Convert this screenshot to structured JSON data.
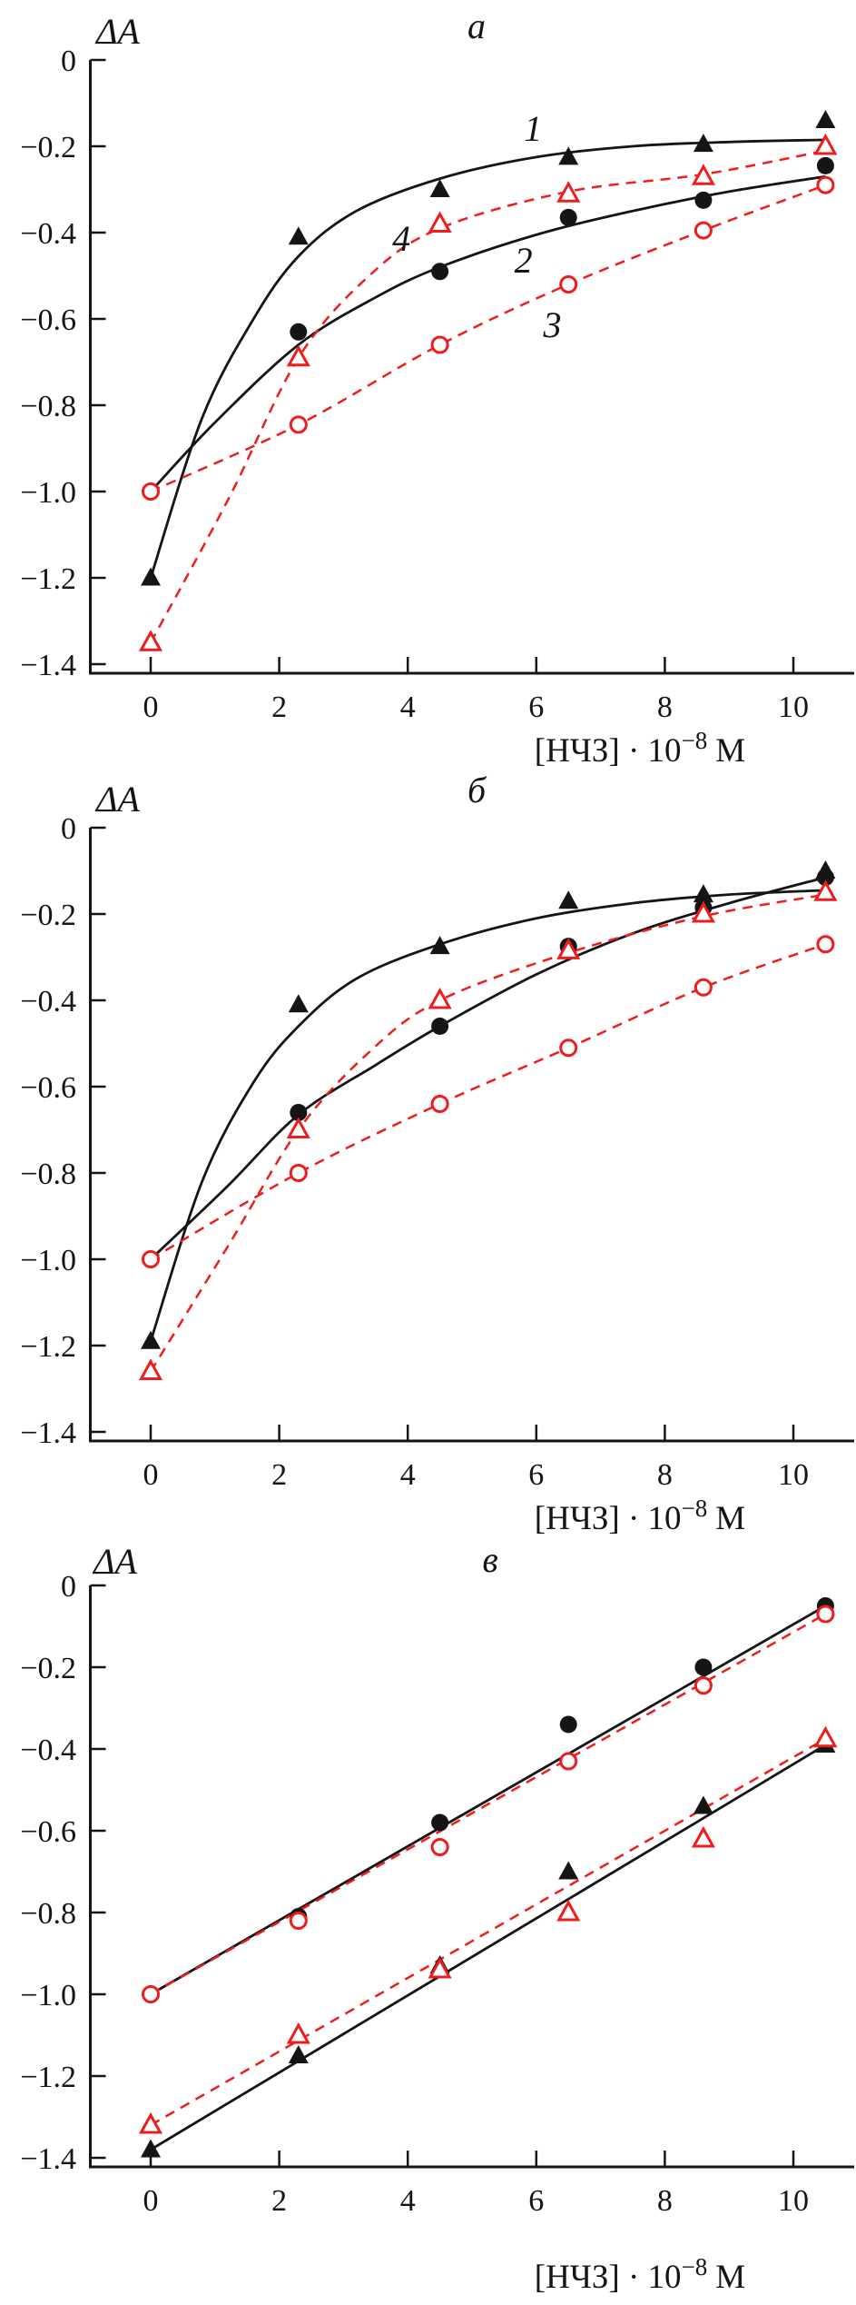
{
  "figure": {
    "palette": {
      "black": "#151515",
      "red": "#ee1c1c",
      "background": "#ffffff"
    }
  },
  "chart_data": [
    {
      "type": "line",
      "title": "a",
      "ylabel": "ΔA",
      "xlabel": "[НЧЗ] · 10⁻⁸ М",
      "xlabel_prefix": "[НЧЗ] · 10",
      "xlabel_sup": "−8",
      "xlabel_unit": "М",
      "x_ticks": [
        "0",
        "2",
        "4",
        "6",
        "8",
        "10"
      ],
      "x_tick_values": [
        0,
        2,
        4,
        6,
        8,
        10
      ],
      "y_ticks": [
        "0",
        "−0.2",
        "−0.4",
        "−0.6",
        "−0.8",
        "−1.0",
        "−1.2",
        "−1.4"
      ],
      "y_tick_values": [
        0,
        -0.2,
        -0.4,
        -0.6,
        -0.8,
        -1.0,
        -1.2,
        -1.4
      ],
      "xlim": [
        -0.95,
        11.0
      ],
      "ylim": [
        -1.45,
        0
      ],
      "grid": false,
      "legend": "none",
      "series": [
        {
          "label": "1",
          "name": "black-filled-triangles",
          "marker": "filled-triangle",
          "color": "black",
          "line_style": "solid",
          "line_shape": "smooth",
          "marker_points": [
            [
              0,
              -1.2
            ],
            [
              2.3,
              -0.41
            ],
            [
              4.5,
              -0.3
            ],
            [
              6.5,
              -0.225
            ],
            [
              8.6,
              -0.195
            ],
            [
              10.5,
              -0.14
            ]
          ],
          "curve_points": [
            [
              0,
              -1.2
            ],
            [
              0.8,
              -0.83
            ],
            [
              1.6,
              -0.6
            ],
            [
              2.3,
              -0.455
            ],
            [
              3.2,
              -0.35
            ],
            [
              4.5,
              -0.275
            ],
            [
              6,
              -0.225
            ],
            [
              7.5,
              -0.2
            ],
            [
              9,
              -0.19
            ],
            [
              10.5,
              -0.185
            ]
          ]
        },
        {
          "label": "2",
          "name": "black-filled-circles",
          "marker": "filled-circle",
          "color": "black",
          "line_style": "solid",
          "line_shape": "smooth",
          "marker_points": [
            [
              2.3,
              -0.63
            ],
            [
              4.5,
              -0.49
            ],
            [
              6.5,
              -0.365
            ],
            [
              8.6,
              -0.325
            ],
            [
              10.5,
              -0.245
            ]
          ],
          "curve_points": [
            [
              0,
              -1.0
            ],
            [
              1,
              -0.84
            ],
            [
              2.3,
              -0.66
            ],
            [
              3.5,
              -0.55
            ],
            [
              4.5,
              -0.48
            ],
            [
              6,
              -0.405
            ],
            [
              7.5,
              -0.35
            ],
            [
              9,
              -0.305
            ],
            [
              10.5,
              -0.27
            ]
          ]
        },
        {
          "label": "3",
          "name": "red-open-circles",
          "marker": "open-circle",
          "color": "red",
          "line_style": "dashed",
          "line_shape": "smooth",
          "marker_points": [
            [
              0,
              -1.0
            ],
            [
              2.3,
              -0.845
            ],
            [
              4.5,
              -0.66
            ],
            [
              6.5,
              -0.52
            ],
            [
              8.6,
              -0.395
            ],
            [
              10.5,
              -0.29
            ]
          ]
        },
        {
          "label": "4",
          "name": "red-open-triangles",
          "marker": "open-triangle",
          "color": "red",
          "line_style": "dashed",
          "line_shape": "smooth",
          "marker_points": [
            [
              0,
              -1.35
            ],
            [
              2.3,
              -0.69
            ],
            [
              4.5,
              -0.38
            ],
            [
              6.5,
              -0.31
            ],
            [
              8.6,
              -0.27
            ],
            [
              10.5,
              -0.2
            ]
          ],
          "curve_points": [
            [
              0,
              -1.35
            ],
            [
              1.2,
              -1.02
            ],
            [
              2.3,
              -0.69
            ],
            [
              3.4,
              -0.5
            ],
            [
              4.5,
              -0.39
            ],
            [
              6.5,
              -0.305
            ],
            [
              8.6,
              -0.265
            ],
            [
              10.5,
              -0.21
            ]
          ]
        }
      ],
      "annotations": [
        {
          "text": "1",
          "x": 5.95,
          "y": -0.16
        },
        {
          "text": "4",
          "x": 3.9,
          "y": -0.415
        },
        {
          "text": "2",
          "x": 5.8,
          "y": -0.465
        },
        {
          "text": "3",
          "x": 6.25,
          "y": -0.615
        }
      ]
    },
    {
      "type": "line",
      "title": "б",
      "ylabel": "ΔA",
      "xlabel": "[НЧЗ] · 10⁻⁸ М",
      "xlabel_prefix": "[НЧЗ] · 10",
      "xlabel_sup": "−8",
      "xlabel_unit": "М",
      "x_ticks": [
        "0",
        "2",
        "4",
        "6",
        "8",
        "10"
      ],
      "x_tick_values": [
        0,
        2,
        4,
        6,
        8,
        10
      ],
      "y_ticks": [
        "0",
        "−0.2",
        "−0.4",
        "−0.6",
        "−0.8",
        "−1.0",
        "−1.2",
        "−1.4"
      ],
      "y_tick_values": [
        0,
        -0.2,
        -0.4,
        -0.6,
        -0.8,
        -1.0,
        -1.2,
        -1.4
      ],
      "xlim": [
        -0.95,
        11.0
      ],
      "ylim": [
        -1.45,
        0
      ],
      "grid": false,
      "legend": "none",
      "series": [
        {
          "label": "",
          "name": "black-filled-triangles",
          "marker": "filled-triangle",
          "color": "black",
          "line_style": "solid",
          "line_shape": "smooth",
          "marker_points": [
            [
              0,
              -1.19
            ],
            [
              2.3,
              -0.41
            ],
            [
              4.5,
              -0.275
            ],
            [
              6.5,
              -0.17
            ],
            [
              8.6,
              -0.155
            ],
            [
              10.5,
              -0.1
            ]
          ],
          "curve_points": [
            [
              0,
              -1.19
            ],
            [
              0.8,
              -0.82
            ],
            [
              1.6,
              -0.59
            ],
            [
              2.3,
              -0.46
            ],
            [
              3.2,
              -0.35
            ],
            [
              4.5,
              -0.27
            ],
            [
              6,
              -0.21
            ],
            [
              7.5,
              -0.175
            ],
            [
              9,
              -0.155
            ],
            [
              10.5,
              -0.145
            ]
          ]
        },
        {
          "label": "",
          "name": "black-filled-circles",
          "marker": "filled-circle",
          "color": "black",
          "line_style": "solid",
          "line_shape": "smooth",
          "marker_points": [
            [
              2.3,
              -0.66
            ],
            [
              4.5,
              -0.46
            ],
            [
              6.5,
              -0.275
            ],
            [
              8.6,
              -0.185
            ],
            [
              10.5,
              -0.115
            ]
          ],
          "curve_points": [
            [
              0,
              -1.0
            ],
            [
              1.2,
              -0.83
            ],
            [
              2.3,
              -0.665
            ],
            [
              3.5,
              -0.55
            ],
            [
              4.5,
              -0.46
            ],
            [
              6,
              -0.34
            ],
            [
              7.5,
              -0.245
            ],
            [
              9,
              -0.175
            ],
            [
              10.5,
              -0.115
            ]
          ]
        },
        {
          "label": "",
          "name": "red-open-circles",
          "marker": "open-circle",
          "color": "red",
          "line_style": "dashed",
          "line_shape": "smooth",
          "marker_points": [
            [
              0,
              -1.0
            ],
            [
              2.3,
              -0.8
            ],
            [
              4.5,
              -0.64
            ],
            [
              6.5,
              -0.51
            ],
            [
              8.6,
              -0.37
            ],
            [
              10.5,
              -0.27
            ]
          ]
        },
        {
          "label": "",
          "name": "red-open-triangles",
          "marker": "open-triangle",
          "color": "red",
          "line_style": "dashed",
          "line_shape": "smooth",
          "marker_points": [
            [
              0,
              -1.26
            ],
            [
              2.3,
              -0.7
            ],
            [
              4.5,
              -0.4
            ],
            [
              6.5,
              -0.285
            ],
            [
              8.6,
              -0.2
            ],
            [
              10.5,
              -0.15
            ]
          ],
          "curve_points": [
            [
              0,
              -1.26
            ],
            [
              1.2,
              -0.97
            ],
            [
              2.3,
              -0.7
            ],
            [
              3.4,
              -0.52
            ],
            [
              4.5,
              -0.4
            ],
            [
              6.5,
              -0.29
            ],
            [
              8.6,
              -0.205
            ],
            [
              10.5,
              -0.155
            ]
          ]
        }
      ],
      "annotations": []
    },
    {
      "type": "line",
      "title": "в",
      "ylabel": "ΔA",
      "xlabel": "[НЧЗ] · 10⁻⁸ М",
      "xlabel_prefix": "[НЧЗ] · 10",
      "xlabel_sup": "−8",
      "xlabel_unit": "М",
      "x_ticks": [
        "0",
        "2",
        "4",
        "6",
        "8",
        "10"
      ],
      "x_tick_values": [
        0,
        2,
        4,
        6,
        8,
        10
      ],
      "y_ticks": [
        "0",
        "−0.2",
        "−0.4",
        "−0.6",
        "−0.8",
        "−1.0",
        "−1.2",
        "−1.4"
      ],
      "y_tick_values": [
        0,
        -0.2,
        -0.4,
        -0.6,
        -0.8,
        -1.0,
        -1.2,
        -1.4
      ],
      "xlim": [
        -0.95,
        11.0
      ],
      "ylim": [
        -1.5,
        0
      ],
      "grid": false,
      "legend": "none",
      "series": [
        {
          "label": "",
          "name": "black-filled-circles",
          "marker": "filled-circle",
          "color": "black",
          "line_style": "solid",
          "line_shape": "straight",
          "marker_points": [
            [
              2.3,
              -0.81
            ],
            [
              4.5,
              -0.58
            ],
            [
              6.5,
              -0.34
            ],
            [
              8.6,
              -0.2
            ],
            [
              10.5,
              -0.05
            ]
          ],
          "curve_points": [
            [
              0,
              -1.0
            ],
            [
              10.5,
              -0.05
            ]
          ]
        },
        {
          "label": "",
          "name": "black-filled-triangles",
          "marker": "filled-triangle",
          "color": "black",
          "line_style": "solid",
          "line_shape": "straight",
          "marker_points": [
            [
              0,
              -1.38
            ],
            [
              2.3,
              -1.15
            ],
            [
              4.5,
              -0.93
            ],
            [
              6.5,
              -0.7
            ],
            [
              8.6,
              -0.54
            ],
            [
              10.5,
              -0.39
            ]
          ],
          "curve_points": [
            [
              0,
              -1.38
            ],
            [
              10.5,
              -0.39
            ]
          ]
        },
        {
          "label": "",
          "name": "red-open-circles",
          "marker": "open-circle",
          "color": "red",
          "line_style": "dashed",
          "line_shape": "straight",
          "marker_points": [
            [
              0,
              -1.0
            ],
            [
              2.3,
              -0.82
            ],
            [
              4.5,
              -0.64
            ],
            [
              6.5,
              -0.43
            ],
            [
              8.6,
              -0.245
            ],
            [
              10.5,
              -0.07
            ]
          ],
          "curve_points": [
            [
              0,
              -1.0
            ],
            [
              10.5,
              -0.07
            ]
          ]
        },
        {
          "label": "",
          "name": "red-open-triangles",
          "marker": "open-triangle",
          "color": "red",
          "line_style": "dashed",
          "line_shape": "straight",
          "marker_points": [
            [
              0,
              -1.32
            ],
            [
              2.3,
              -1.1
            ],
            [
              4.5,
              -0.94
            ],
            [
              6.5,
              -0.8
            ],
            [
              8.6,
              -0.62
            ],
            [
              10.5,
              -0.375
            ]
          ],
          "curve_points": [
            [
              0,
              -1.32
            ],
            [
              10.5,
              -0.375
            ]
          ]
        }
      ],
      "annotations": []
    }
  ]
}
